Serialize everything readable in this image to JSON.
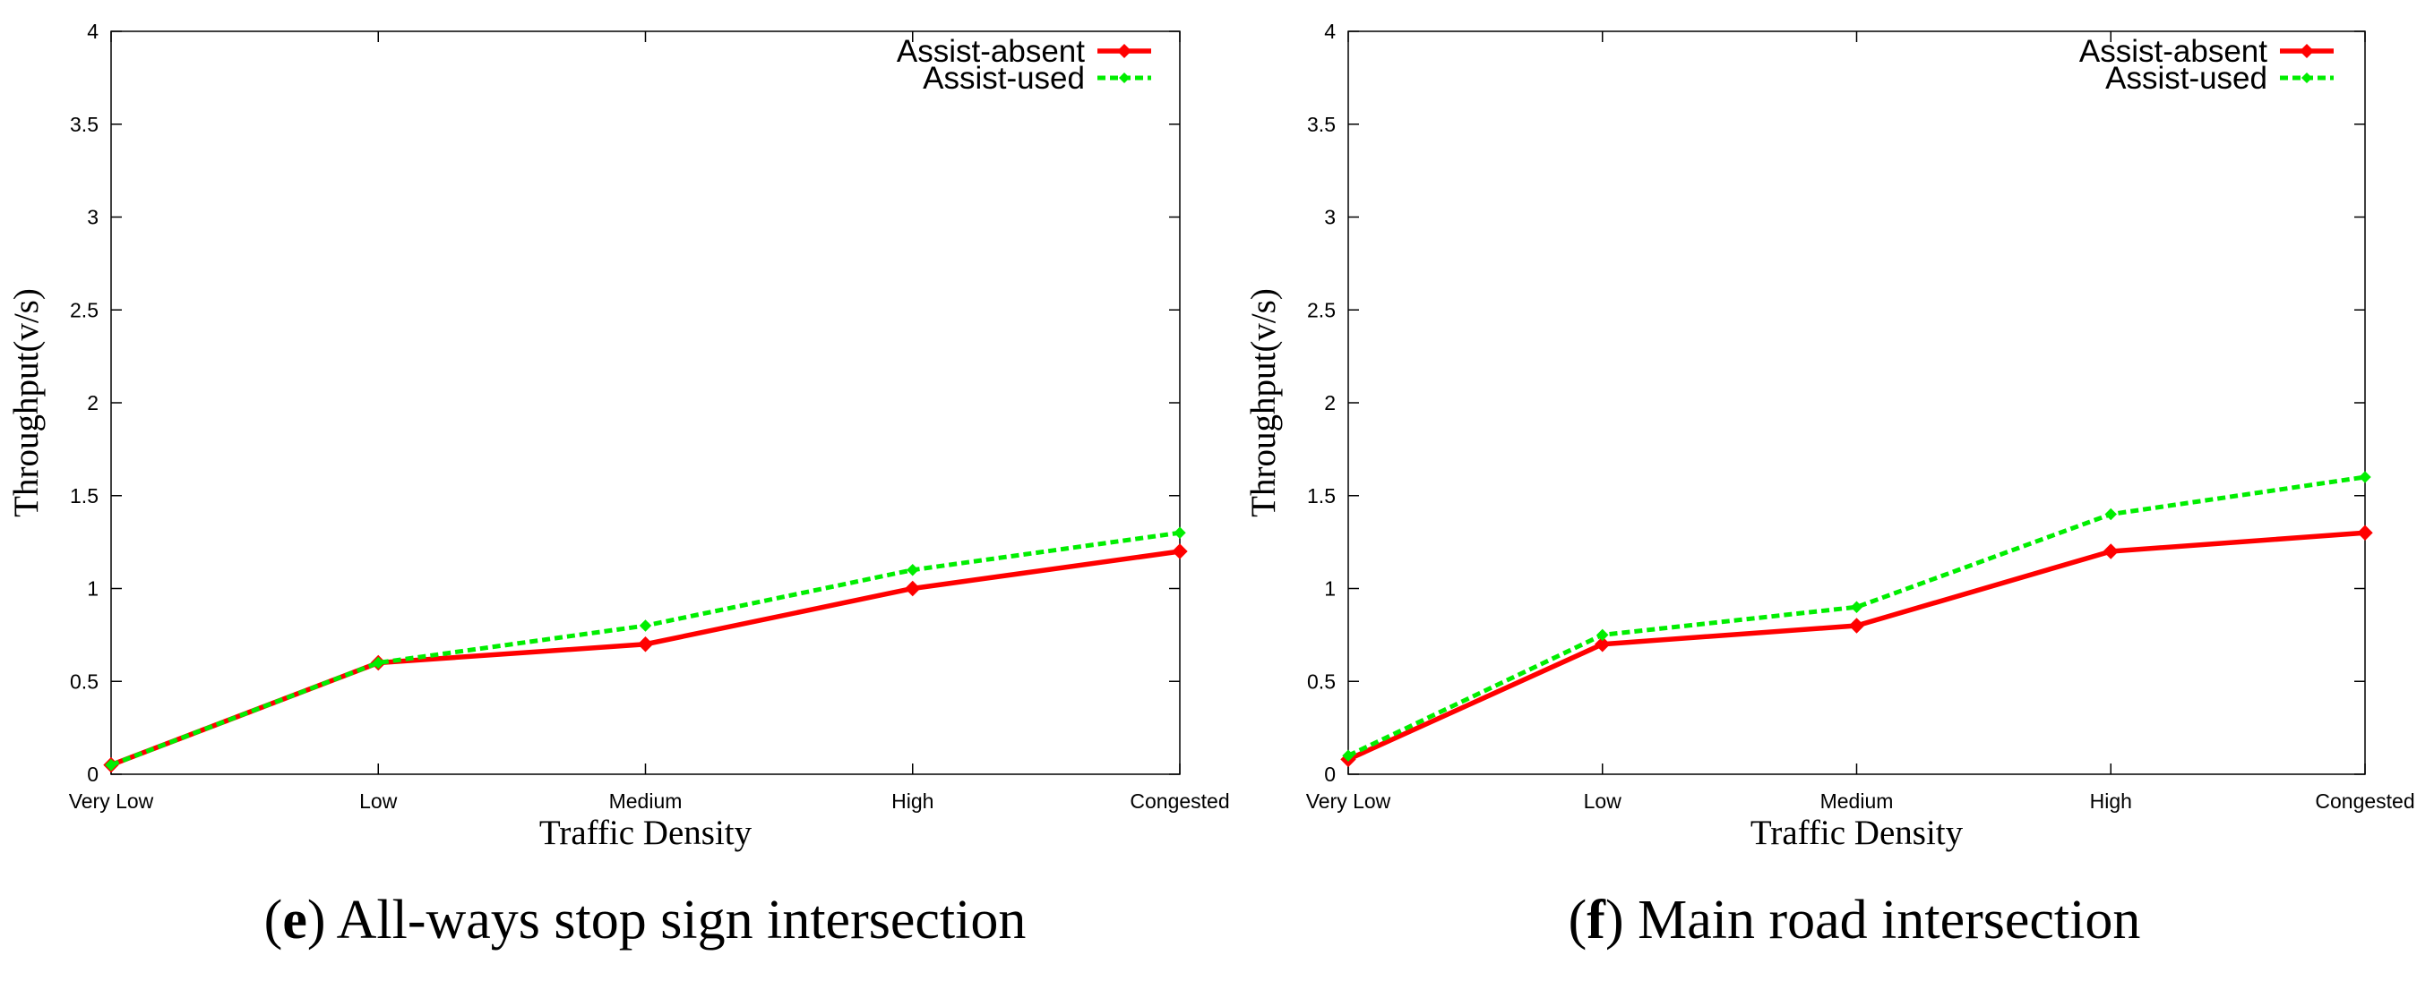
{
  "chart_data": [
    {
      "type": "line",
      "panel_label": "e",
      "caption": "All-ways stop sign intersection",
      "title": "",
      "xlabel": "Traffic Density",
      "ylabel": "Throughput(v/s)",
      "categories": [
        "Very Low",
        "Low",
        "Medium",
        "High",
        "Congested"
      ],
      "ylim": [
        0,
        4
      ],
      "yticks": [
        "0",
        "0.5",
        "1",
        "1.5",
        "2",
        "2.5",
        "3",
        "3.5",
        "4"
      ],
      "ytick_values": [
        0,
        0.5,
        1,
        1.5,
        2,
        2.5,
        3,
        3.5,
        4
      ],
      "legend_position": "top-right",
      "grid": false,
      "series": [
        {
          "name": "Assist-absent",
          "color": "#ff0000",
          "style": "solid",
          "marker": "diamond",
          "values": [
            0.05,
            0.6,
            0.7,
            1.0,
            1.2
          ]
        },
        {
          "name": "Assist-used",
          "color": "#00ee00",
          "style": "dashed",
          "marker": "diamond",
          "values": [
            0.05,
            0.6,
            0.8,
            1.1,
            1.3
          ]
        }
      ]
    },
    {
      "type": "line",
      "panel_label": "f",
      "caption": "Main road intersection",
      "title": "",
      "xlabel": "Traffic Density",
      "ylabel": "Throughput(v/s)",
      "categories": [
        "Very Low",
        "Low",
        "Medium",
        "High",
        "Congested"
      ],
      "ylim": [
        0,
        4
      ],
      "yticks": [
        "0",
        "0.5",
        "1",
        "1.5",
        "2",
        "2.5",
        "3",
        "3.5",
        "4"
      ],
      "ytick_values": [
        0,
        0.5,
        1,
        1.5,
        2,
        2.5,
        3,
        3.5,
        4
      ],
      "legend_position": "top-right",
      "grid": false,
      "series": [
        {
          "name": "Assist-absent",
          "color": "#ff0000",
          "style": "solid",
          "marker": "diamond",
          "values": [
            0.08,
            0.7,
            0.8,
            1.2,
            1.3
          ]
        },
        {
          "name": "Assist-used",
          "color": "#00ee00",
          "style": "dashed",
          "marker": "diamond",
          "values": [
            0.1,
            0.75,
            0.9,
            1.4,
            1.6
          ]
        }
      ]
    }
  ]
}
